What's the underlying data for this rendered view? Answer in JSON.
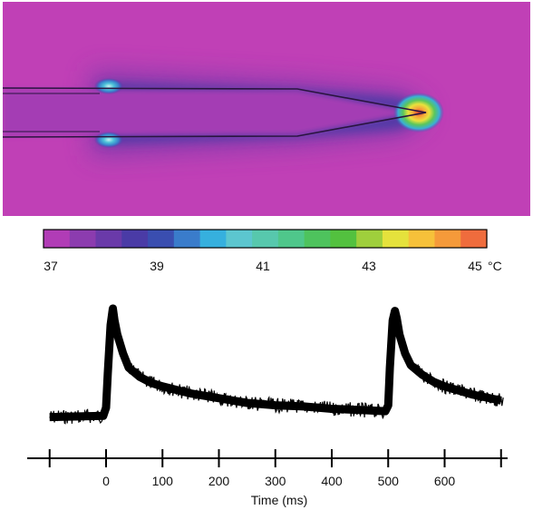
{
  "chart_data": [
    {
      "type": "heatmap",
      "colorbar": {
        "min": 37,
        "max": 45,
        "unit": "°C",
        "tick_labels": [
          "37",
          "39",
          "41",
          "43",
          "45"
        ],
        "tick_values": [
          37,
          39,
          41,
          43,
          45
        ],
        "colors": [
          "#b13cb6",
          "#8c3caf",
          "#6a3aa9",
          "#4a3ba6",
          "#3a4eb0",
          "#3a7ccb",
          "#36b0de",
          "#5cc6cf",
          "#57c8ad",
          "#4fc78b",
          "#4ec35d",
          "#53c13f",
          "#9fcf3c",
          "#e5e23c",
          "#f6c13a",
          "#f59a3a",
          "#ef6c3d"
        ]
      },
      "background_color": "#c040b6",
      "hotspots": [
        {
          "name": "tip",
          "value": 45
        },
        {
          "name": "upper-edge",
          "value": 40.5
        },
        {
          "name": "lower-edge",
          "value": 40.5
        }
      ]
    },
    {
      "type": "line",
      "xlabel": "Time (ms)",
      "xlim": [
        -100,
        705
      ],
      "x_ticks": [
        0,
        100,
        200,
        300,
        400,
        500,
        600
      ],
      "x_tick_labels": [
        "0",
        "100",
        "200",
        "300",
        "400",
        "500",
        "600"
      ],
      "x_minor_ticks": [
        -100,
        700
      ],
      "series": [
        {
          "x": [
            -100,
            -5,
            0,
            3,
            8,
            12,
            15,
            20,
            30,
            40,
            60,
            80,
            100,
            150,
            200,
            250,
            300,
            350,
            400,
            450,
            495,
            500,
            503,
            508,
            512,
            515,
            520,
            530,
            540,
            560,
            580,
            600,
            650,
            700
          ],
          "y": [
            0.08,
            0.09,
            0.16,
            0.45,
            0.86,
            1.0,
            0.9,
            0.78,
            0.62,
            0.5,
            0.42,
            0.37,
            0.34,
            0.28,
            0.24,
            0.2,
            0.18,
            0.17,
            0.15,
            0.14,
            0.13,
            0.18,
            0.5,
            0.9,
            0.98,
            0.92,
            0.78,
            0.62,
            0.52,
            0.44,
            0.38,
            0.34,
            0.27,
            0.22
          ]
        }
      ]
    }
  ]
}
